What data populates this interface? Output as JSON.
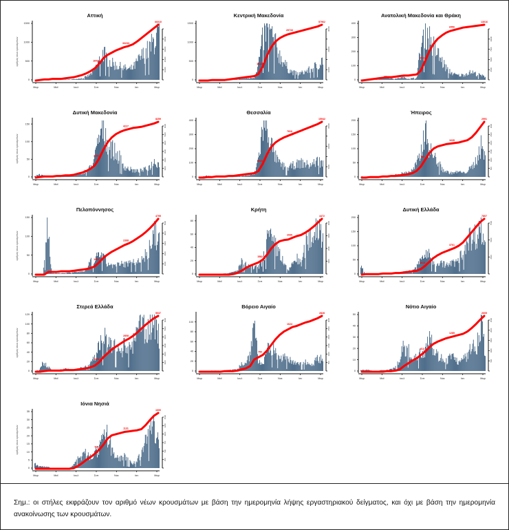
{
  "chart_data": [
    {
      "type": "bar",
      "title": "Αττική",
      "ylabel": "αριθμός νέων κρουσμάτων",
      "ylim": [
        0,
        1500
      ],
      "yticks": [
        0,
        500,
        1000,
        1500
      ],
      "y2ticks": [
        "",
        "10000",
        "20000",
        "30000",
        "40000",
        ""
      ],
      "x": [
        "Μαρ",
        "Μαϊ",
        "Ιουλ",
        "Σεπ",
        "Νοε",
        "Ιαν",
        "Μαρ"
      ],
      "annotations": [
        "16031",
        "33233",
        "66010"
      ],
      "final_total": "66010",
      "profile": [
        5,
        8,
        5,
        4,
        4,
        5,
        6,
        8,
        10,
        20,
        35,
        55,
        90,
        160,
        300,
        560,
        820,
        600,
        480,
        420,
        380,
        340,
        300,
        360,
        540,
        700,
        820,
        950,
        1200,
        1400
      ],
      "cum": [
        0,
        0.01,
        0.02,
        0.02,
        0.03,
        0.03,
        0.03,
        0.04,
        0.05,
        0.06,
        0.08,
        0.1,
        0.13,
        0.17,
        0.22,
        0.3,
        0.4,
        0.46,
        0.5,
        0.54,
        0.57,
        0.6,
        0.62,
        0.65,
        0.7,
        0.76,
        0.82,
        0.88,
        0.94,
        1
      ]
    },
    {
      "type": "bar",
      "title": "Κεντρική Μακεδονία",
      "ylabel": "",
      "ylim": [
        0,
        1500
      ],
      "yticks": [
        0,
        500,
        1000,
        1500
      ],
      "y2ticks": [
        "",
        "10000",
        "",
        "20000",
        "",
        "30000"
      ],
      "x": [
        "Μαρ",
        "Μαϊ",
        "Ιουλ",
        "Σεπ",
        "Νοε",
        "Ιαν",
        "Μαρ"
      ],
      "annotations": [
        "16325",
        "29733",
        "57962"
      ],
      "final_total": "57962",
      "profile": [
        3,
        3,
        2,
        2,
        2,
        2,
        3,
        4,
        10,
        25,
        30,
        40,
        50,
        70,
        500,
        1200,
        1500,
        1300,
        1000,
        700,
        500,
        300,
        220,
        180,
        200,
        250,
        300,
        380,
        460,
        600
      ],
      "cum": [
        0,
        0,
        0,
        0.01,
        0.01,
        0.01,
        0.01,
        0.02,
        0.03,
        0.04,
        0.05,
        0.06,
        0.07,
        0.08,
        0.12,
        0.25,
        0.45,
        0.6,
        0.7,
        0.76,
        0.8,
        0.83,
        0.85,
        0.87,
        0.89,
        0.91,
        0.93,
        0.95,
        0.97,
        1
      ]
    },
    {
      "type": "bar",
      "title": "Ανατολική Μακεδονία και Θράκη",
      "ylabel": "",
      "ylim": [
        0,
        400
      ],
      "yticks": [
        0,
        100,
        200,
        300,
        400
      ],
      "y2ticks": [
        "",
        "2500",
        "5000",
        "7500",
        "10000",
        ""
      ],
      "x": [
        "Μαρ",
        "Μαϊ",
        "Ιουλ",
        "Σεπ",
        "Νοε",
        "Ιαν",
        "Μαρ"
      ],
      "annotations": [
        "2541",
        "6550",
        "13016"
      ],
      "final_total": "13016",
      "profile": [
        2,
        2,
        3,
        4,
        8,
        20,
        30,
        10,
        8,
        15,
        20,
        10,
        12,
        15,
        250,
        400,
        330,
        260,
        200,
        140,
        90,
        60,
        40,
        35,
        40,
        55,
        60,
        45,
        35,
        25
      ],
      "cum": [
        0,
        0.01,
        0.02,
        0.03,
        0.04,
        0.05,
        0.06,
        0.06,
        0.07,
        0.08,
        0.09,
        0.09,
        0.1,
        0.11,
        0.18,
        0.35,
        0.53,
        0.66,
        0.75,
        0.81,
        0.86,
        0.89,
        0.91,
        0.93,
        0.95,
        0.96,
        0.97,
        0.98,
        0.99,
        1
      ]
    },
    {
      "type": "bar",
      "title": "Δυτική Μακεδονία",
      "ylabel": "αριθμός νέων κρουσμάτων",
      "ylim": [
        0,
        160
      ],
      "yticks": [
        0,
        50,
        100,
        150
      ],
      "y2ticks": [
        "",
        "1000",
        "2000",
        "3000",
        "4000",
        "5000",
        "6000"
      ],
      "x": [
        "Μαρ",
        "Μαϊ",
        "Ιουλ",
        "Σεπ",
        "Νοε",
        "Ιαν",
        "Μαρ"
      ],
      "annotations": [
        "2101",
        "4227",
        "8259"
      ],
      "final_total": "8259",
      "profile": [
        3,
        8,
        4,
        2,
        2,
        3,
        3,
        3,
        4,
        5,
        8,
        12,
        20,
        30,
        60,
        120,
        160,
        110,
        90,
        70,
        60,
        30,
        25,
        20,
        18,
        20,
        25,
        35,
        50,
        40
      ],
      "cum": [
        0,
        0.01,
        0.02,
        0.02,
        0.02,
        0.03,
        0.03,
        0.04,
        0.04,
        0.05,
        0.07,
        0.09,
        0.12,
        0.16,
        0.22,
        0.34,
        0.5,
        0.63,
        0.72,
        0.78,
        0.82,
        0.85,
        0.87,
        0.89,
        0.9,
        0.91,
        0.93,
        0.95,
        0.97,
        1
      ]
    },
    {
      "type": "bar",
      "title": "Θεσσαλία",
      "ylabel": "",
      "ylim": [
        0,
        400
      ],
      "yticks": [
        0,
        100,
        200,
        300,
        400
      ],
      "y2ticks": [
        "",
        "5000",
        "",
        "10000",
        "",
        "15000"
      ],
      "x": [
        "Μαρ",
        "Μαϊ",
        "Ιουλ",
        "Σεπ",
        "Νοε",
        "Ιαν",
        "Μαρ"
      ],
      "annotations": [
        "3920",
        "7816",
        "15942"
      ],
      "final_total": "15942",
      "profile": [
        2,
        4,
        10,
        4,
        2,
        2,
        3,
        3,
        4,
        6,
        8,
        10,
        15,
        20,
        150,
        380,
        400,
        250,
        150,
        100,
        80,
        70,
        90,
        100,
        110,
        100,
        90,
        110,
        130,
        100
      ],
      "cum": [
        0,
        0,
        0.01,
        0.01,
        0.02,
        0.02,
        0.02,
        0.03,
        0.03,
        0.04,
        0.05,
        0.06,
        0.07,
        0.08,
        0.12,
        0.25,
        0.42,
        0.55,
        0.63,
        0.68,
        0.72,
        0.75,
        0.78,
        0.81,
        0.84,
        0.87,
        0.9,
        0.93,
        0.96,
        1
      ]
    },
    {
      "type": "bar",
      "title": "Ήπειρος",
      "ylabel": "",
      "ylim": [
        0,
        200
      ],
      "yticks": [
        0,
        50,
        100,
        150,
        200
      ],
      "y2ticks": [
        "",
        "500",
        "1000",
        "1500",
        "2000",
        "2500",
        "3000"
      ],
      "x": [
        "Μαρ",
        "Μαϊ",
        "Ιουλ",
        "Σεπ",
        "Νοε",
        "Ιαν",
        "Μαρ"
      ],
      "annotations": [
        "750",
        "1639",
        "2991"
      ],
      "final_total": "2991",
      "profile": [
        2,
        2,
        2,
        1,
        2,
        2,
        3,
        6,
        8,
        12,
        15,
        20,
        25,
        50,
        90,
        200,
        110,
        80,
        60,
        30,
        20,
        15,
        18,
        20,
        15,
        25,
        40,
        70,
        120,
        80
      ],
      "cum": [
        0,
        0,
        0.01,
        0.01,
        0.01,
        0.02,
        0.02,
        0.03,
        0.03,
        0.04,
        0.05,
        0.06,
        0.08,
        0.12,
        0.2,
        0.32,
        0.44,
        0.52,
        0.56,
        0.58,
        0.6,
        0.61,
        0.62,
        0.63,
        0.65,
        0.67,
        0.72,
        0.8,
        0.9,
        1
      ]
    },
    {
      "type": "bar",
      "title": "Πελοπόννησος",
      "ylabel": "αριθμός νέων κρουσμάτων",
      "ylim": [
        0,
        150
      ],
      "yticks": [
        0,
        50,
        100,
        150
      ],
      "y2ticks": [
        "",
        "1000",
        "2000",
        "3000",
        "4000",
        "5000"
      ],
      "x": [
        "Μαρ",
        "Μαϊ",
        "Ιουλ",
        "Σεπ",
        "Νοε",
        "Ιαν",
        "Μαρ"
      ],
      "annotations": [
        "1402",
        "2308",
        "4795"
      ],
      "final_total": "4795",
      "profile": [
        0,
        1,
        1,
        150,
        2,
        2,
        2,
        3,
        4,
        5,
        6,
        8,
        10,
        35,
        30,
        70,
        45,
        30,
        25,
        25,
        28,
        30,
        30,
        35,
        45,
        40,
        60,
        80,
        120,
        90
      ],
      "cum": [
        0,
        0,
        0,
        0.05,
        0.05,
        0.05,
        0.06,
        0.06,
        0.06,
        0.07,
        0.08,
        0.09,
        0.1,
        0.12,
        0.15,
        0.22,
        0.3,
        0.36,
        0.41,
        0.45,
        0.49,
        0.53,
        0.56,
        0.6,
        0.65,
        0.7,
        0.76,
        0.83,
        0.91,
        1
      ]
    },
    {
      "type": "bar",
      "title": "Κρήτη",
      "ylabel": "",
      "ylim": [
        0,
        85
      ],
      "yticks": [
        0,
        20,
        40,
        60,
        80
      ],
      "y2ticks": [
        "",
        "1000",
        "2000",
        "3000",
        "4000"
      ],
      "x": [
        "Μαρ",
        "Μαϊ",
        "Ιουλ",
        "Σεπ",
        "Νοε",
        "Ιαν",
        "Μαρ"
      ],
      "annotations": [
        "1582",
        "2930",
        "4472"
      ],
      "final_total": "4472",
      "profile": [
        0,
        0,
        0,
        0,
        0,
        0,
        1,
        1,
        3,
        5,
        20,
        15,
        12,
        10,
        12,
        20,
        60,
        55,
        45,
        35,
        15,
        5,
        20,
        25,
        15,
        50,
        60,
        70,
        85,
        60
      ],
      "cum": [
        0,
        0,
        0,
        0,
        0,
        0,
        0,
        0,
        0.01,
        0.03,
        0.07,
        0.12,
        0.16,
        0.19,
        0.22,
        0.27,
        0.36,
        0.47,
        0.55,
        0.6,
        0.62,
        0.63,
        0.66,
        0.69,
        0.71,
        0.75,
        0.8,
        0.86,
        0.93,
        1
      ]
    },
    {
      "type": "bar",
      "title": "Δυτική Ελλάδα",
      "ylabel": "",
      "ylim": [
        0,
        200
      ],
      "yticks": [
        0,
        50,
        100,
        150,
        200
      ],
      "y2ticks": [
        "",
        "2500",
        "5000",
        "7500"
      ],
      "x": [
        "Μαρ",
        "Μαϊ",
        "Ιουλ",
        "Σεπ",
        "Νοε",
        "Ιαν",
        "Μαρ"
      ],
      "annotations": [
        "1815",
        "3761",
        "7807"
      ],
      "final_total": "7807",
      "profile": [
        40,
        2,
        1,
        1,
        1,
        1,
        2,
        2,
        3,
        5,
        8,
        10,
        15,
        25,
        60,
        80,
        70,
        50,
        45,
        40,
        35,
        40,
        45,
        60,
        100,
        150,
        130,
        160,
        190,
        110
      ],
      "cum": [
        0,
        0.01,
        0.01,
        0.01,
        0.01,
        0.02,
        0.02,
        0.02,
        0.03,
        0.03,
        0.04,
        0.05,
        0.06,
        0.07,
        0.1,
        0.16,
        0.23,
        0.3,
        0.35,
        0.39,
        0.42,
        0.45,
        0.48,
        0.52,
        0.58,
        0.67,
        0.76,
        0.85,
        0.94,
        1
      ]
    },
    {
      "type": "bar",
      "title": "Στερεά Ελλάδα",
      "ylabel": "αριθμός νέων κρουσμάτων",
      "ylim": [
        0,
        120
      ],
      "yticks": [
        0,
        20,
        40,
        60,
        80,
        100,
        120
      ],
      "y2ticks": [
        "",
        "1000",
        "2000",
        "3000",
        "4000",
        "5000",
        "6000"
      ],
      "x": [
        "Μαρ",
        "Μαϊ",
        "Ιουλ",
        "Σεπ",
        "Νοε",
        "Ιαν",
        "Μαρ"
      ],
      "annotations": [
        "1425",
        "2808",
        "5037"
      ],
      "final_total": "5037",
      "profile": [
        0,
        2,
        22,
        12,
        2,
        2,
        3,
        5,
        4,
        3,
        5,
        8,
        10,
        20,
        30,
        60,
        85,
        55,
        65,
        50,
        45,
        60,
        50,
        65,
        90,
        115,
        95,
        110,
        120,
        80
      ],
      "cum": [
        0,
        0,
        0.01,
        0.02,
        0.02,
        0.02,
        0.02,
        0.03,
        0.03,
        0.03,
        0.04,
        0.05,
        0.06,
        0.08,
        0.11,
        0.17,
        0.26,
        0.33,
        0.4,
        0.45,
        0.5,
        0.55,
        0.59,
        0.64,
        0.7,
        0.77,
        0.84,
        0.9,
        0.96,
        1
      ]
    },
    {
      "type": "bar",
      "title": "Βόρειο Αιγαίο",
      "ylabel": "",
      "ylim": [
        0,
        115
      ],
      "yticks": [
        0,
        20,
        40,
        60,
        80,
        100
      ],
      "y2ticks": [
        "",
        "500",
        "1000",
        "1500",
        "2000",
        "2500",
        "3000"
      ],
      "x": [
        "Μαρ",
        "Μαϊ",
        "Ιουλ",
        "Σεπ",
        "Νοε",
        "Ιαν",
        "Μαρ"
      ],
      "annotations": [
        "750",
        "1624",
        "2828"
      ],
      "final_total": "2828",
      "profile": [
        0,
        0,
        0,
        1,
        1,
        1,
        1,
        2,
        3,
        5,
        18,
        15,
        40,
        115,
        20,
        15,
        45,
        50,
        40,
        35,
        30,
        25,
        20,
        15,
        18,
        20,
        15,
        20,
        30,
        25
      ],
      "cum": [
        0,
        0,
        0,
        0,
        0,
        0,
        0.01,
        0.01,
        0.01,
        0.02,
        0.04,
        0.06,
        0.1,
        0.22,
        0.26,
        0.3,
        0.38,
        0.48,
        0.58,
        0.66,
        0.72,
        0.76,
        0.8,
        0.82,
        0.85,
        0.88,
        0.9,
        0.93,
        0.96,
        1
      ]
    },
    {
      "type": "bar",
      "title": "Νότιο Αιγαίο",
      "ylabel": "",
      "ylim": [
        0,
        50
      ],
      "yticks": [
        0,
        10,
        20,
        30,
        40,
        50
      ],
      "y2ticks": [
        "",
        "500",
        "1000",
        "1500",
        "2000",
        "2500"
      ],
      "x": [
        "Μαρ",
        "Μαϊ",
        "Ιουλ",
        "Σεπ",
        "Νοε",
        "Ιαν",
        "Μαρ"
      ],
      "annotations": [
        "813",
        "1285",
        "2605"
      ],
      "final_total": "2605",
      "profile": [
        1,
        1,
        1,
        0,
        0,
        1,
        1,
        2,
        4,
        10,
        25,
        20,
        15,
        12,
        18,
        22,
        40,
        20,
        15,
        12,
        10,
        15,
        12,
        8,
        12,
        15,
        25,
        22,
        48,
        20
      ],
      "cum": [
        0,
        0,
        0,
        0,
        0,
        0,
        0.01,
        0.01,
        0.02,
        0.04,
        0.1,
        0.15,
        0.2,
        0.24,
        0.3,
        0.36,
        0.44,
        0.5,
        0.54,
        0.57,
        0.6,
        0.62,
        0.64,
        0.66,
        0.68,
        0.72,
        0.78,
        0.85,
        0.93,
        1
      ]
    },
    {
      "type": "bar",
      "title": "Ιόνια Νησιά",
      "ylabel": "αριθμός νέων κρουσμάτων",
      "ylim": [
        0,
        35
      ],
      "yticks": [
        0,
        5,
        10,
        15,
        20,
        25,
        30,
        35
      ],
      "y2ticks": [
        "",
        "250",
        "500",
        "750",
        "1000",
        "1250",
        "1500"
      ],
      "x": [
        "Μαρ",
        "Μαϊ",
        "Ιουλ",
        "Σεπ",
        "Νοε",
        "Ιαν",
        "Μαρ"
      ],
      "annotations": [
        "725",
        "1131",
        "1600"
      ],
      "final_total": "1600",
      "profile": [
        3,
        1,
        1,
        1,
        0,
        0,
        0,
        0,
        0,
        2,
        6,
        8,
        10,
        8,
        10,
        12,
        20,
        22,
        12,
        8,
        6,
        8,
        5,
        3,
        6,
        10,
        22,
        34,
        25,
        15
      ],
      "cum": [
        0,
        0,
        0,
        0,
        0,
        0,
        0,
        0,
        0,
        0.01,
        0.05,
        0.1,
        0.16,
        0.21,
        0.27,
        0.34,
        0.43,
        0.54,
        0.6,
        0.62,
        0.64,
        0.66,
        0.67,
        0.68,
        0.69,
        0.71,
        0.78,
        0.87,
        0.95,
        1
      ]
    }
  ],
  "note": {
    "text": "Σημ.: οι στήλες εκφράζουν τον αριθμό νέων κρουσμάτων με βάση την ημερομηνία λήψης εργαστηριακού δείγματος, και όχι με βάση την ημερομηνία ανακοίνωσης των κρουσμάτων."
  },
  "colors": {
    "bar": "#4a6a88",
    "line": "#ff0000",
    "axis": "#111111"
  }
}
